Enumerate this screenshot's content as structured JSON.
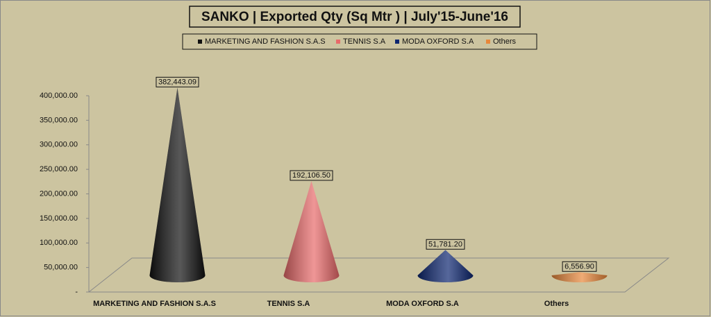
{
  "chart_data": {
    "type": "cone",
    "title": "SANKO | Exported Qty (Sq Mtr ) | July'15-June'16",
    "categories": [
      "MARKETING AND FASHION S.A.S",
      "TENNIS S.A",
      "MODA OXFORD S.A",
      "Others"
    ],
    "values": [
      382443.09,
      192106.5,
      51781.2,
      6556.9
    ],
    "value_labels": [
      "382,443.09",
      "192,106.50",
      "51,781.20",
      "6,556.90"
    ],
    "colors": [
      "#111111",
      "#e86a6a",
      "#0d2670",
      "#e8873a"
    ],
    "ylim": [
      0,
      400000
    ],
    "yticks": [
      {
        "value": 0,
        "label": "-"
      },
      {
        "value": 50000,
        "label": "50,000.00"
      },
      {
        "value": 100000,
        "label": "100,000.00"
      },
      {
        "value": 150000,
        "label": "150,000.00"
      },
      {
        "value": 200000,
        "label": "200,000.00"
      },
      {
        "value": 250000,
        "label": "250,000.00"
      },
      {
        "value": 300000,
        "label": "300,000.00"
      },
      {
        "value": 350000,
        "label": "350,000.00"
      },
      {
        "value": 400000,
        "label": "400,000.00"
      }
    ],
    "legend": "top"
  }
}
